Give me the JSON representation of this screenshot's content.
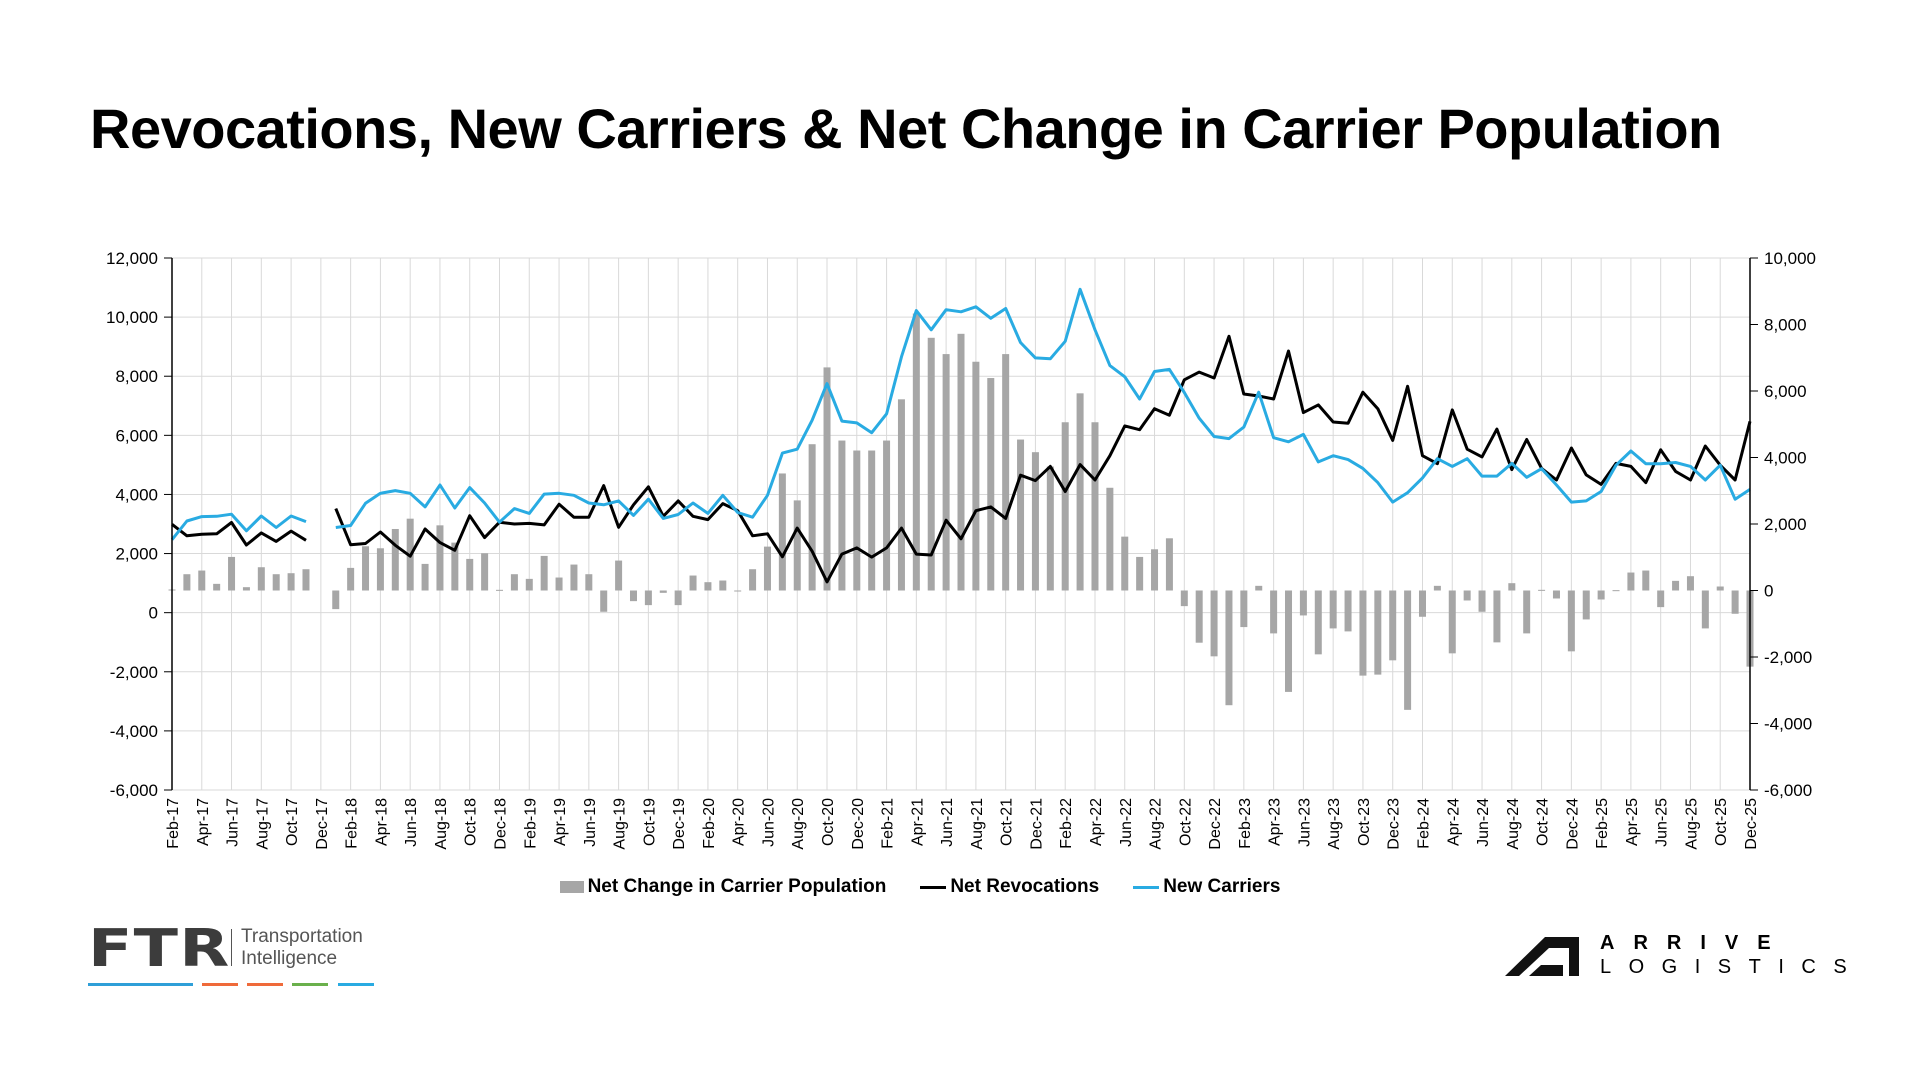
{
  "title": "Revocations, New Carriers & Net Change in Carrier Population",
  "legend": {
    "net_change": "Net Change in Carrier Population",
    "revocations": "Net Revocations",
    "new_carriers": "New Carriers"
  },
  "colors": {
    "bars": "#a6a6a6",
    "revocations": "#000000",
    "new_carriers": "#29abe2",
    "grid": "#d9d9d9"
  },
  "logos": {
    "ftr": {
      "word": "FTR",
      "line1": "Transportation",
      "line2": "Intelligence"
    },
    "arrive": {
      "line1": "ARRIVE",
      "line2": "LOGISTICS"
    }
  },
  "chart_data": {
    "type": "bar+line",
    "title": "Revocations, New Carriers & Net Change in Carrier Population",
    "left_axis": {
      "ylim": [
        -6000,
        12000
      ],
      "ticks": [
        "12,000",
        "10,000",
        "8,000",
        "6,000",
        "4,000",
        "2,000",
        "0",
        "-2,000",
        "-4,000",
        "-6,000"
      ],
      "values": [
        12000,
        10000,
        8000,
        6000,
        4000,
        2000,
        0,
        -2000,
        -4000,
        -6000
      ],
      "series": [
        "Net Revocations",
        "New Carriers"
      ]
    },
    "right_axis": {
      "ylim": [
        -6000,
        10000
      ],
      "ticks": [
        "10,000",
        "8,000",
        "6,000",
        "4,000",
        "2,000",
        "0",
        "-2,000",
        "-4,000",
        "-6,000"
      ],
      "values": [
        10000,
        8000,
        6000,
        4000,
        2000,
        0,
        -2000,
        -4000,
        -6000
      ],
      "series": [
        "Net Change in Carrier Population"
      ]
    },
    "grid": true,
    "legend_position": "bottom",
    "categories": [
      "Feb-17",
      "Mar-17",
      "Apr-17",
      "May-17",
      "Jun-17",
      "Jul-17",
      "Aug-17",
      "Sep-17",
      "Oct-17",
      "Nov-17",
      "Dec-17",
      "Jan-18",
      "Feb-18",
      "Mar-18",
      "Apr-18",
      "May-18",
      "Jun-18",
      "Jul-18",
      "Aug-18",
      "Sep-18",
      "Oct-18",
      "Nov-18",
      "Dec-18",
      "Jan-19",
      "Feb-19",
      "Mar-19",
      "Apr-19",
      "May-19",
      "Jun-19",
      "Jul-19",
      "Aug-19",
      "Sep-19",
      "Oct-19",
      "Nov-19",
      "Dec-19",
      "Jan-20",
      "Feb-20",
      "Mar-20",
      "Apr-20",
      "May-20",
      "Jun-20",
      "Jul-20",
      "Aug-20",
      "Sep-20",
      "Oct-20",
      "Nov-20",
      "Dec-20",
      "Jan-21",
      "Feb-21",
      "Mar-21",
      "Apr-21",
      "May-21",
      "Jun-21",
      "Jul-21",
      "Aug-21",
      "Sep-21",
      "Oct-21",
      "Nov-21",
      "Dec-21",
      "Jan-22",
      "Feb-22",
      "Mar-22",
      "Apr-22",
      "May-22",
      "Jun-22",
      "Jul-22",
      "Aug-22",
      "Sep-22",
      "Oct-22",
      "Nov-22",
      "Dec-22",
      "Jan-23",
      "Feb-23",
      "Mar-23",
      "Apr-23",
      "May-23",
      "Jun-23",
      "Jul-23",
      "Aug-23",
      "Sep-23",
      "Oct-23",
      "Nov-23",
      "Dec-23",
      "Jan-24",
      "Feb-24",
      "Mar-24",
      "Apr-24",
      "May-24",
      "Jun-24",
      "Jul-24",
      "Aug-24",
      "Sep-24",
      "Oct-24",
      "Nov-24",
      "Dec-24",
      "Jan-25",
      "Feb-25",
      "Mar-25",
      "Apr-25",
      "May-25",
      "Jun-25",
      "Jul-25",
      "Aug-25",
      "Sep-25",
      "Oct-25",
      "Nov-25",
      "Dec-25"
    ],
    "series": [
      {
        "name": "Net Change in Carrier Population",
        "type": "bar",
        "axis": "right",
        "values": [
          30,
          490,
          600,
          200,
          1010,
          100,
          700,
          490,
          520,
          640,
          null,
          -560,
          680,
          1330,
          1270,
          1850,
          2160,
          800,
          1960,
          1440,
          950,
          1120,
          20,
          490,
          350,
          1040,
          390,
          780,
          490,
          -640,
          900,
          -320,
          -440,
          -70,
          -440,
          450,
          250,
          300,
          -30,
          640,
          1320,
          3520,
          2710,
          4400,
          6710,
          4510,
          4210,
          4210,
          4510,
          5750,
          8330,
          7600,
          7110,
          7720,
          6880,
          6390,
          7110,
          4540,
          4160,
          3730,
          5060,
          5930,
          5060,
          3090,
          1620,
          1010,
          1240,
          1570,
          -470,
          -1570,
          -1980,
          -3450,
          -1100,
          140,
          -1290,
          -3050,
          -750,
          -1920,
          -1140,
          -1230,
          -2560,
          -2530,
          -2100,
          -3590,
          -790,
          140,
          -1890,
          -300,
          -640,
          -1560,
          220,
          -1290,
          20,
          -240,
          -1830,
          -870,
          -270,
          10,
          540,
          600,
          -500,
          290,
          430,
          -1140,
          120,
          -700,
          -2290
        ]
      },
      {
        "name": "Net Revocations",
        "type": "line",
        "axis": "left",
        "values": [
          2990,
          2600,
          2650,
          2670,
          3050,
          2290,
          2700,
          2410,
          2760,
          2450,
          null,
          3520,
          2300,
          2340,
          2730,
          2280,
          1910,
          2830,
          2370,
          2110,
          3280,
          2540,
          3060,
          3000,
          3020,
          2970,
          3670,
          3230,
          3230,
          4300,
          2890,
          3650,
          4260,
          3260,
          3780,
          3260,
          3150,
          3690,
          3450,
          2600,
          2670,
          1890,
          2860,
          2080,
          1040,
          1980,
          2190,
          1880,
          2190,
          2860,
          1980,
          1950,
          3130,
          2500,
          3450,
          3580,
          3190,
          4650,
          4470,
          4950,
          4100,
          5010,
          4490,
          5310,
          6320,
          6190,
          6900,
          6680,
          7880,
          8140,
          7940,
          9350,
          7400,
          7330,
          7230,
          8850,
          6770,
          7030,
          6450,
          6410,
          7460,
          6900,
          5830,
          7660,
          5310,
          5040,
          6860,
          5530,
          5270,
          6210,
          4840,
          5860,
          4880,
          4490,
          5570,
          4660,
          4340,
          5050,
          4950,
          4400,
          5510,
          4780,
          4490,
          5640,
          4990,
          4490,
          6470
        ]
      },
      {
        "name": "New Carriers",
        "type": "line",
        "axis": "left",
        "values": [
          2470,
          3100,
          3250,
          3260,
          3330,
          2770,
          3270,
          2880,
          3270,
          3080,
          null,
          2880,
          2950,
          3700,
          4040,
          4130,
          4040,
          3580,
          4320,
          3540,
          4230,
          3710,
          3060,
          3520,
          3360,
          4010,
          4040,
          3970,
          3710,
          3650,
          3780,
          3290,
          3840,
          3190,
          3320,
          3710,
          3360,
          3970,
          3390,
          3230,
          3970,
          5400,
          5530,
          6510,
          7750,
          6480,
          6420,
          6090,
          6730,
          8660,
          10220,
          9570,
          10250,
          10180,
          10350,
          9960,
          10290,
          9140,
          8620,
          8590,
          9180,
          10940,
          9570,
          8360,
          7980,
          7230,
          8160,
          8230,
          7450,
          6580,
          5960,
          5890,
          6280,
          7460,
          5920,
          5780,
          6030,
          5100,
          5310,
          5180,
          4880,
          4400,
          3740,
          4060,
          4560,
          5210,
          4950,
          5210,
          4620,
          4620,
          5050,
          4580,
          4870,
          4320,
          3740,
          3780,
          4100,
          4990,
          5470,
          5040,
          5040,
          5080,
          4950,
          4490,
          4990,
          3840,
          4170
        ]
      }
    ]
  }
}
